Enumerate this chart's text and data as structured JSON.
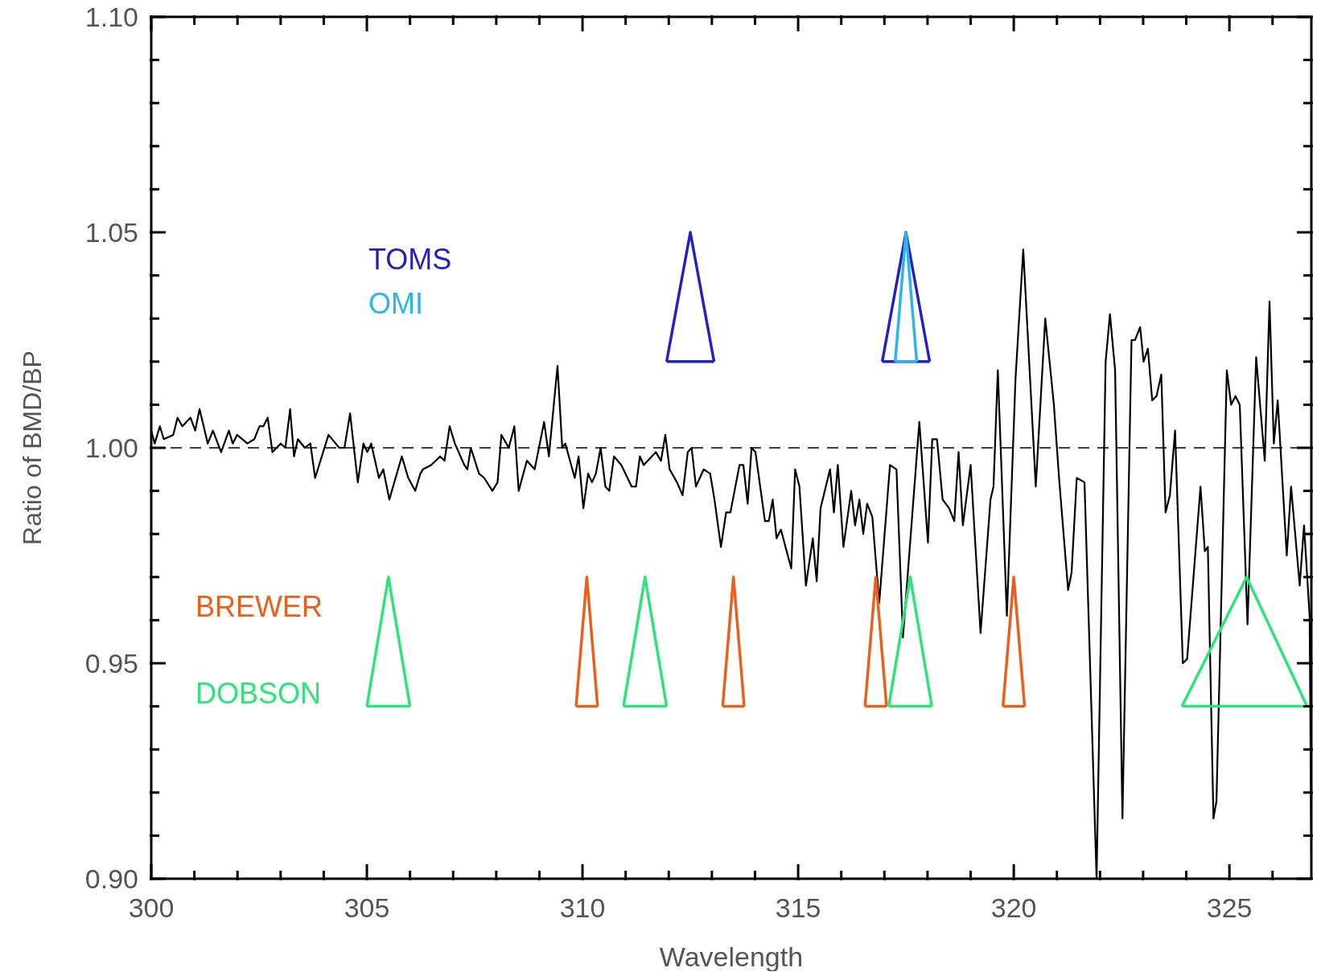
{
  "chart_data": {
    "type": "line",
    "xlabel": "Wavelength",
    "ylabel": "Ratio of BMD/BP",
    "xlim": [
      300,
      326.9
    ],
    "ylim": [
      0.9,
      1.1
    ],
    "xticks": [
      300,
      {
        "value": 301,
        "label": null
      },
      {
        "value": 302,
        "label": null
      },
      {
        "value": 303,
        "label": null
      },
      {
        "value": 304,
        "label": null
      },
      305,
      {
        "value": 306,
        "label": null
      },
      {
        "value": 307,
        "label": null
      },
      {
        "value": 308,
        "label": null
      },
      {
        "value": 309,
        "label": null
      },
      310,
      {
        "value": 311,
        "label": null
      },
      {
        "value": 312,
        "label": null
      },
      {
        "value": 313,
        "label": null
      },
      {
        "value": 314,
        "label": null
      },
      315,
      {
        "value": 316,
        "label": null
      },
      {
        "value": 317,
        "label": null
      },
      {
        "value": 318,
        "label": null
      },
      {
        "value": 319,
        "label": null
      },
      320,
      {
        "value": 321,
        "label": null
      },
      {
        "value": 322,
        "label": null
      },
      {
        "value": 323,
        "label": null
      },
      {
        "value": 324,
        "label": null
      },
      325,
      {
        "value": 326,
        "label": null
      }
    ],
    "yticks": [
      {
        "value": 0.9,
        "label": "0.90"
      },
      {
        "value": 0.91,
        "label": null
      },
      {
        "value": 0.92,
        "label": null
      },
      {
        "value": 0.93,
        "label": null
      },
      {
        "value": 0.94,
        "label": null
      },
      {
        "value": 0.95,
        "label": "0.95"
      },
      {
        "value": 0.96,
        "label": null
      },
      {
        "value": 0.97,
        "label": null
      },
      {
        "value": 0.98,
        "label": null
      },
      {
        "value": 0.99,
        "label": null
      },
      {
        "value": 1,
        "label": "1.00"
      },
      {
        "value": 1.01,
        "label": null
      },
      {
        "value": 1.02,
        "label": null
      },
      {
        "value": 1.03,
        "label": null
      },
      {
        "value": 1.04,
        "label": null
      },
      {
        "value": 1.05,
        "label": "1.05"
      },
      {
        "value": 1.06,
        "label": null
      },
      {
        "value": 1.07,
        "label": null
      },
      {
        "value": 1.08,
        "label": null
      },
      {
        "value": 1.09,
        "label": null
      },
      {
        "value": 1.1,
        "label": "1.10"
      }
    ],
    "ref_lines": [
      {
        "axis": "y",
        "value": 1,
        "color": "#000000",
        "line_style": "dashed"
      }
    ],
    "series": [
      {
        "color": "#000000",
        "x": [
          300,
          300.08,
          300.2,
          300.29,
          300.51,
          300.61,
          300.72,
          300.91,
          301.02,
          301.12,
          301.31,
          301.43,
          301.62,
          301.8,
          301.89,
          301.99,
          302.23,
          302.39,
          302.51,
          302.6,
          302.7,
          302.81,
          303,
          303.11,
          303.22,
          303.31,
          303.4,
          303.56,
          303.69,
          303.8,
          304.11,
          304.36,
          304.48,
          304.61,
          304.79,
          304.92,
          305.01,
          305.1,
          305.28,
          305.38,
          305.52,
          305.81,
          305.96,
          306.12,
          306.24,
          306.3,
          306.49,
          306.7,
          306.8,
          306.92,
          307.04,
          307.26,
          307.33,
          307.41,
          307.6,
          307.72,
          307.91,
          308.03,
          308.12,
          308.29,
          308.42,
          308.52,
          308.71,
          308.89,
          309.11,
          309.22,
          309.42,
          309.53,
          309.6,
          309.82,
          309.91,
          310.02,
          310.13,
          310.22,
          310.31,
          310.42,
          310.53,
          310.62,
          310.73,
          310.9,
          311.14,
          311.24,
          311.33,
          311.42,
          311.7,
          311.82,
          311.92,
          312.02,
          312.19,
          312.32,
          312.44,
          312.53,
          312.63,
          312.81,
          312.96,
          313.06,
          313.21,
          313.33,
          313.43,
          313.64,
          313.73,
          313.83,
          313.92,
          314.01,
          314.23,
          314.32,
          314.41,
          314.5,
          314.6,
          314.84,
          314.93,
          315.03,
          315.18,
          315.34,
          315.43,
          315.52,
          315.74,
          315.83,
          315.92,
          316.05,
          316.23,
          316.32,
          316.42,
          316.51,
          316.6,
          316.72,
          316.88,
          317.13,
          317.28,
          317.43,
          317.81,
          318.01,
          318.11,
          318.22,
          318.35,
          318.5,
          318.62,
          318.72,
          318.82,
          319,
          319.23,
          319.46,
          319.53,
          319.63,
          319.84,
          320.04,
          320.22,
          320.51,
          320.73,
          320.93,
          321.05,
          321.26,
          321.34,
          321.46,
          321.64,
          321.92,
          322.13,
          322.23,
          322.35,
          322.52,
          322.73,
          322.81,
          322.93,
          323.01,
          323.11,
          323.21,
          323.31,
          323.42,
          323.52,
          323.62,
          323.74,
          323.92,
          324.02,
          324.33,
          324.43,
          324.5,
          324.63,
          324.7,
          324.94,
          325.04,
          325.14,
          325.24,
          325.42,
          325.62,
          325.82,
          325.93,
          326.03,
          326.12,
          326.33,
          326.43,
          326.63,
          326.73,
          326.86,
          326.9
        ],
        "values": [
          1.004,
          1.001,
          1.005,
          1.002,
          1.003,
          1.007,
          1.005,
          1.007,
          1.004,
          1.009,
          1.001,
          1.004,
          0.999,
          1.004,
          1.001,
          1.003,
          1.001,
          1.002,
          1.005,
          1.005,
          1.007,
          0.999,
          1.001,
          1,
          1.009,
          0.998,
          1.002,
          1,
          1.001,
          0.993,
          1.003,
          1,
          1,
          1.008,
          0.992,
          1.001,
          0.999,
          1.001,
          0.993,
          0.995,
          0.988,
          0.998,
          0.993,
          0.99,
          0.994,
          0.995,
          0.996,
          0.998,
          0.997,
          1.005,
          1.001,
          0.996,
          0.995,
          1,
          0.994,
          0.993,
          0.99,
          0.992,
          1.003,
          1,
          1.005,
          0.99,
          0.997,
          0.995,
          1.006,
          0.998,
          1.019,
          1,
          1.001,
          0.993,
          0.998,
          0.986,
          0.994,
          0.992,
          0.994,
          1,
          0.991,
          0.99,
          0.998,
          0.996,
          0.991,
          0.991,
          0.998,
          0.996,
          0.999,
          0.997,
          1.003,
          0.995,
          0.992,
          0.989,
          0.999,
          1,
          0.991,
          0.995,
          0.994,
          0.988,
          0.977,
          0.985,
          0.985,
          0.996,
          0.996,
          0.987,
          1,
          0.999,
          0.983,
          0.983,
          0.988,
          0.979,
          0.981,
          0.972,
          0.995,
          0.991,
          0.968,
          0.979,
          0.969,
          0.986,
          0.995,
          0.985,
          0.996,
          0.977,
          0.99,
          0.982,
          0.988,
          0.98,
          0.987,
          0.984,
          0.964,
          0.996,
          0.995,
          0.956,
          1.006,
          0.978,
          1.002,
          1.002,
          0.988,
          0.986,
          0.983,
          0.999,
          0.982,
          0.996,
          0.957,
          0.988,
          0.991,
          1.018,
          0.961,
          1.016,
          1.046,
          0.991,
          1.03,
          1.01,
          0.993,
          0.967,
          0.971,
          0.993,
          0.992,
          0.9,
          1.02,
          1.031,
          1.018,
          0.914,
          1.025,
          1.025,
          1.028,
          1.02,
          1.023,
          1.011,
          1.012,
          1.017,
          0.985,
          0.989,
          1.004,
          0.95,
          0.951,
          0.991,
          0.976,
          0.977,
          0.914,
          0.918,
          1.018,
          1.01,
          1.012,
          1.01,
          0.959,
          1.021,
          0.997,
          1.034,
          1.001,
          1.011,
          0.975,
          0.991,
          0.968,
          0.982,
          0.961,
          0.906
        ]
      },
      {
        "name": "TOMS",
        "color": "#2222c4",
        "x": [
          311.95,
          312.5,
          313.05
        ],
        "values": [
          1.02,
          1.05,
          1.02
        ]
      },
      {
        "color": "#2222c4",
        "x": [
          311.95,
          313.05
        ],
        "values": [
          1.02,
          1.02
        ]
      },
      {
        "color": "#2222c4",
        "x": [
          316.95,
          317.5,
          318.05
        ],
        "values": [
          1.02,
          1.05,
          1.02
        ]
      },
      {
        "color": "#2222c4",
        "x": [
          316.95,
          318.05
        ],
        "values": [
          1.02,
          1.02
        ]
      },
      {
        "name": "OMI",
        "color": "#2bb5e8",
        "x": [
          317.25,
          317.5,
          317.75
        ],
        "values": [
          1.02,
          1.05,
          1.02
        ]
      },
      {
        "color": "#2bb5e8",
        "x": [
          317.25,
          317.75
        ],
        "values": [
          1.02,
          1.02
        ]
      },
      {
        "name": "BREWER",
        "color": "#e8601c",
        "x": [
          309.85,
          310.1,
          310.35
        ],
        "values": [
          0.94,
          0.97,
          0.94
        ]
      },
      {
        "color": "#e8601c",
        "x": [
          309.85,
          310.35
        ],
        "values": [
          0.94,
          0.94
        ]
      },
      {
        "color": "#e8601c",
        "x": [
          313.25,
          313.5,
          313.75
        ],
        "values": [
          0.94,
          0.97,
          0.94
        ]
      },
      {
        "color": "#e8601c",
        "x": [
          313.25,
          313.75
        ],
        "values": [
          0.94,
          0.94
        ]
      },
      {
        "color": "#e8601c",
        "x": [
          316.55,
          316.8,
          317.05
        ],
        "values": [
          0.94,
          0.97,
          0.94
        ]
      },
      {
        "color": "#e8601c",
        "x": [
          316.55,
          317.05
        ],
        "values": [
          0.94,
          0.94
        ]
      },
      {
        "color": "#e8601c",
        "x": [
          319.75,
          320,
          320.25
        ],
        "values": [
          0.94,
          0.97,
          0.94
        ]
      },
      {
        "color": "#e8601c",
        "x": [
          319.75,
          320.25
        ],
        "values": [
          0.94,
          0.94
        ]
      },
      {
        "name": "DOBSON",
        "color": "#2ee37a",
        "x": [
          305,
          305.5,
          306
        ],
        "values": [
          0.94,
          0.97,
          0.94
        ]
      },
      {
        "color": "#2ee37a",
        "x": [
          305,
          306
        ],
        "values": [
          0.94,
          0.94
        ]
      },
      {
        "color": "#2ee37a",
        "x": [
          310.95,
          311.45,
          311.95
        ],
        "values": [
          0.94,
          0.97,
          0.94
        ]
      },
      {
        "color": "#2ee37a",
        "x": [
          310.95,
          311.95
        ],
        "values": [
          0.94,
          0.94
        ]
      },
      {
        "color": "#2ee37a",
        "x": [
          317.1,
          317.6,
          318.1
        ],
        "values": [
          0.94,
          0.97,
          0.94
        ]
      },
      {
        "color": "#2ee37a",
        "x": [
          317.1,
          318.1
        ],
        "values": [
          0.94,
          0.94
        ]
      },
      {
        "color": "#2ee37a",
        "x": [
          323.9,
          325.4,
          326.8
        ],
        "values": [
          0.94,
          0.97,
          0.94
        ]
      },
      {
        "color": "#2ee37a",
        "x": [
          323.9,
          326.8
        ],
        "values": [
          0.94,
          0.94
        ]
      }
    ]
  }
}
